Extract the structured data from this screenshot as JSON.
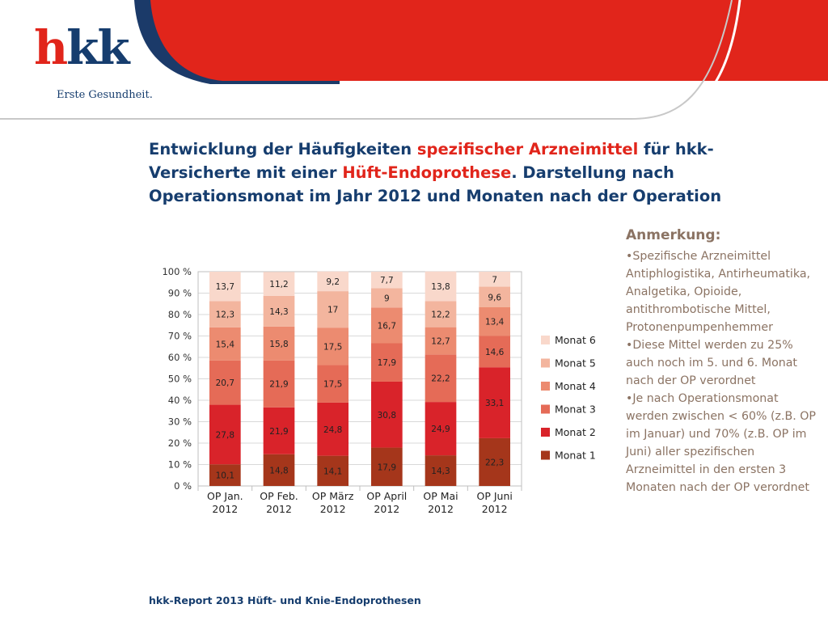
{
  "logo": {
    "wordmark_h": "h",
    "wordmark_rest": "kk",
    "tagline": "Erste Gesundheit."
  },
  "title": {
    "part1": "Entwicklung der Häufigkeiten ",
    "hl1": "spezifischer Arzneimittel",
    "part2": " für hkk-Versicherte mit einer ",
    "hl2": "Hüft-Endoprothese",
    "part3": ". Darstellung nach Operationsmonat im Jahr 2012 und Monaten nach der Operation"
  },
  "notes": {
    "heading": "Anmerkung:",
    "items": [
      "•Spezifische Arzneimittel Antiphlogistika, Antirheumatika, Analgetika, Opioide, antithrombotische Mittel, Protonenpumpenhemmer",
      "•Diese Mittel werden zu 25% auch noch im 5. und 6. Monat  nach der OP verordnet",
      "•Je nach Operationsmonat werden zwischen < 60% (z.B. OP im Januar) und 70% (z.B. OP im Juni) aller spezifischen Arzneimittel in den ersten 3 Monaten nach der OP verordnet"
    ]
  },
  "footer": "hkk-Report 2013 Hüft- und Knie-Endoprothesen",
  "colors": {
    "navy": "#163d6e",
    "red": "#e1251b",
    "banner_navy": "#1b3a69",
    "notes_text": "#8b7363"
  },
  "chart_data": {
    "type": "bar",
    "stacked": true,
    "categories": [
      [
        "OP Jan.",
        "2012"
      ],
      [
        "OP Feb.",
        "2012"
      ],
      [
        "OP März",
        "2012"
      ],
      [
        "OP April",
        "2012"
      ],
      [
        "OP Mai",
        "2012"
      ],
      [
        "OP Juni",
        "2012"
      ]
    ],
    "series": [
      {
        "name": "Monat 1",
        "color": "#a5361b",
        "values": [
          10.1,
          14.8,
          14.1,
          17.9,
          14.3,
          22.3
        ],
        "labels": [
          "10,1",
          "14,8",
          "14,1",
          "17,9",
          "14,3",
          "22,3"
        ]
      },
      {
        "name": "Monat 2",
        "color": "#d9232a",
        "values": [
          27.8,
          21.9,
          24.8,
          30.8,
          24.9,
          33.1
        ],
        "labels": [
          "27,8",
          "21,9",
          "24,8",
          "30,8",
          "24,9",
          "33,1"
        ]
      },
      {
        "name": "Monat 3",
        "color": "#e56b57",
        "values": [
          20.7,
          21.9,
          17.5,
          17.9,
          22.2,
          14.6
        ],
        "labels": [
          "20,7",
          "21,9",
          "17,5",
          "17,9",
          "22,2",
          "14,6"
        ]
      },
      {
        "name": "Monat 4",
        "color": "#ec8b70",
        "values": [
          15.4,
          15.8,
          17.5,
          16.7,
          12.7,
          13.4
        ],
        "labels": [
          "15,4",
          "15,8",
          "17,5",
          "16,7",
          "12,7",
          "13,4"
        ]
      },
      {
        "name": "Monat 5",
        "color": "#f3b59e",
        "values": [
          12.3,
          14.3,
          17,
          9,
          12.2,
          9.6
        ],
        "labels": [
          "12,3",
          "14,3",
          "17",
          "9",
          "12,2",
          "9,6"
        ]
      },
      {
        "name": "Monat 6",
        "color": "#f9d8cb",
        "values": [
          13.7,
          11.2,
          9.2,
          7.7,
          13.8,
          7
        ],
        "labels": [
          "13,7",
          "11,2",
          "9,2",
          "7,7",
          "13,8",
          "7"
        ]
      }
    ],
    "y_ticks": [
      "0 %",
      "10 %",
      "20 %",
      "30 %",
      "40 %",
      "50 %",
      "60 %",
      "70 %",
      "80 %",
      "90 %",
      "100 %"
    ],
    "ylim": [
      0,
      100
    ],
    "grid": true,
    "legend_position": "right"
  }
}
